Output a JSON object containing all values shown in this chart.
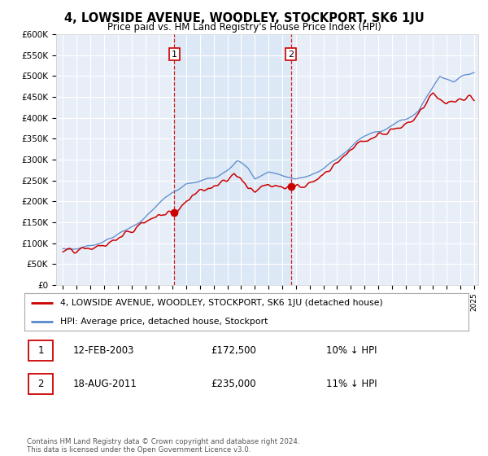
{
  "title": "4, LOWSIDE AVENUE, WOODLEY, STOCKPORT, SK6 1JU",
  "subtitle": "Price paid vs. HM Land Registry's House Price Index (HPI)",
  "legend_label_red": "4, LOWSIDE AVENUE, WOODLEY, STOCKPORT, SK6 1JU (detached house)",
  "legend_label_blue": "HPI: Average price, detached house, Stockport",
  "sale1_date": "12-FEB-2003",
  "sale1_price": "£172,500",
  "sale1_hpi": "10% ↓ HPI",
  "sale2_date": "18-AUG-2011",
  "sale2_price": "£235,000",
  "sale2_hpi": "11% ↓ HPI",
  "footer": "Contains HM Land Registry data © Crown copyright and database right 2024.\nThis data is licensed under the Open Government Licence v3.0.",
  "ylim": [
    0,
    600000
  ],
  "yticks": [
    0,
    50000,
    100000,
    150000,
    200000,
    250000,
    300000,
    350000,
    400000,
    450000,
    500000,
    550000,
    600000
  ],
  "ytick_labels": [
    "£0",
    "£50K",
    "£100K",
    "£150K",
    "£200K",
    "£250K",
    "£300K",
    "£350K",
    "£400K",
    "£450K",
    "£500K",
    "£550K",
    "£600K"
  ],
  "sale1_year": 2003.12,
  "sale1_value": 172500,
  "sale2_year": 2011.64,
  "sale2_value": 235000,
  "background_color": "#e8eef8",
  "shade_color": "#dce8f5",
  "plot_bg": "#e8eef8",
  "red_color": "#cc0000",
  "blue_color": "#5588cc",
  "grid_color": "#ffffff",
  "xlim_start": 1995,
  "xlim_end": 2025
}
